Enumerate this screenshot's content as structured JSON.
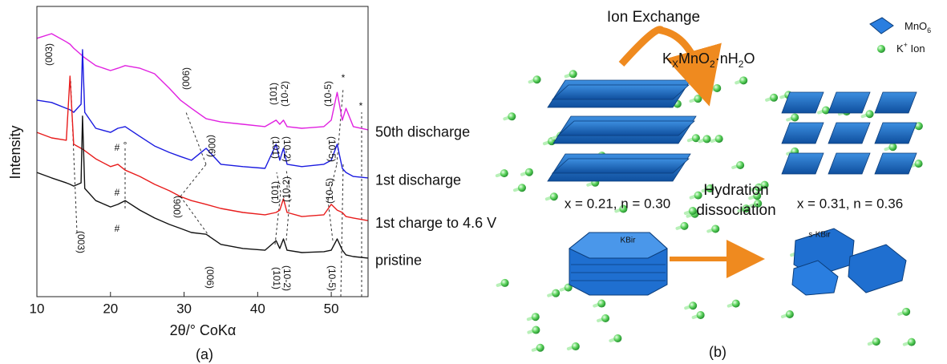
{
  "chart_data": {
    "type": "line",
    "xlabel": "2θ/° CoKα",
    "ylabel": "Intensity",
    "x": [
      10,
      12,
      14,
      14.5,
      15,
      16,
      16.2,
      16.5,
      18,
      20,
      21,
      22,
      24,
      26,
      28,
      29.5,
      31,
      33,
      35,
      38,
      41,
      42.5,
      43,
      43.5,
      44,
      46,
      49,
      50,
      50.8,
      51.5,
      52,
      53,
      55
    ],
    "xlim": [
      10,
      55
    ],
    "xticks": [
      10,
      20,
      30,
      40,
      50
    ],
    "ylim": [
      0,
      100
    ],
    "series": [
      {
        "name": "50th discharge",
        "color": "#e020e0",
        "values": [
          89,
          90.6,
          87.8,
          87,
          85.6,
          83.4,
          82.9,
          82.3,
          79.6,
          77.9,
          78.7,
          79.6,
          78.7,
          76.8,
          71.8,
          67.7,
          64.9,
          61.3,
          60.2,
          59.4,
          58.6,
          60.8,
          59.4,
          60.8,
          58.6,
          58,
          58.6,
          60.8,
          70.4,
          60.8,
          64.9,
          58.6,
          57.5
        ]
      },
      {
        "name": "1st discharge",
        "color": "#1a1ae0",
        "values": [
          67.7,
          66.9,
          64.9,
          64.4,
          63.5,
          66.3,
          85.1,
          63.5,
          58,
          56.6,
          58,
          58.6,
          55.2,
          51.9,
          49.7,
          48.3,
          47,
          51.1,
          45.6,
          44.8,
          44.2,
          52.5,
          47,
          51.1,
          45.6,
          44.8,
          45.6,
          47,
          52.5,
          44.2,
          42.8,
          41.4,
          40.9
        ]
      },
      {
        "name": "1st charge to 4.6 V",
        "color": "#e81c1c",
        "values": [
          56.6,
          54.7,
          53.9,
          76,
          52.5,
          51.1,
          50.8,
          50.3,
          47.5,
          44.8,
          45.6,
          43.6,
          41.4,
          38.7,
          36.5,
          34.5,
          33.1,
          31.8,
          30.4,
          29,
          28.2,
          29,
          29.8,
          33.7,
          29,
          27.6,
          28.2,
          31.8,
          29.8,
          29,
          27.6,
          27.1,
          26.2
        ]
      },
      {
        "name": "pristine",
        "color": "#111111",
        "values": [
          42.8,
          40.9,
          39.2,
          38.7,
          38.1,
          39.2,
          62.2,
          37.3,
          33.1,
          30.9,
          31.8,
          33.1,
          29.8,
          27.1,
          24.9,
          23.5,
          22.1,
          21.5,
          18,
          16.6,
          16,
          19.3,
          16.6,
          19.9,
          16,
          15.2,
          15.5,
          16,
          19.9,
          16,
          14.4,
          13.8,
          13.3
        ]
      }
    ],
    "annotations": [
      {
        "text": "(003)",
        "color": "#e8231f"
      },
      {
        "text": "(006)",
        "color": "#e8231f"
      },
      {
        "text": "(101)",
        "color": "#e8231f"
      },
      {
        "text": "(10-2)",
        "color": "#e8231f"
      },
      {
        "text": "(10-5)",
        "color": "#e8231f"
      },
      {
        "text": "#",
        "color": "#222222"
      },
      {
        "text": "°",
        "color": "#222222"
      },
      {
        "text": "(006)",
        "color": "#222222"
      },
      {
        "text": "(101)",
        "color": "#222222"
      },
      {
        "text": "(10-2)",
        "color": "#222222"
      },
      {
        "text": "(10-5)",
        "color": "#222222"
      },
      {
        "text": "#",
        "color": "#222222"
      },
      {
        "text": "(006)",
        "color": "#e8231f"
      },
      {
        "text": "(101)",
        "color": "#e8231f"
      },
      {
        "text": "(10-2)",
        "color": "#e8231f"
      },
      {
        "text": "(10-5)",
        "color": "#e8231f"
      },
      {
        "text": "#",
        "color": "#222222"
      },
      {
        "text": "(003)",
        "color": "#222222"
      },
      {
        "text": "(006)",
        "color": "#222222"
      },
      {
        "text": "(101)",
        "color": "#222222"
      },
      {
        "text": "(10-2)",
        "color": "#222222"
      },
      {
        "text": "(10-5)",
        "color": "#222222"
      },
      {
        "text": "*",
        "color": "#222222"
      },
      {
        "text": "*",
        "color": "#222222"
      }
    ]
  },
  "diagram": {
    "ion_exchange": "Ion Exchange",
    "formula": [
      "K",
      "X",
      "MnO",
      "2",
      "·nH",
      "2",
      "O"
    ],
    "legend_mno6": [
      "MnO",
      "6"
    ],
    "legend_k": [
      "K",
      "+",
      " Ion"
    ],
    "left_composition": "x = 0.21, n = 0.30",
    "right_composition": "x = 0.31, n = 0.36",
    "hydration": [
      "Hydration",
      "dissociation"
    ],
    "kbir": "KBir",
    "s_kbir": "s-KBir"
  },
  "panel_labels": [
    "(a)",
    "(b)"
  ]
}
